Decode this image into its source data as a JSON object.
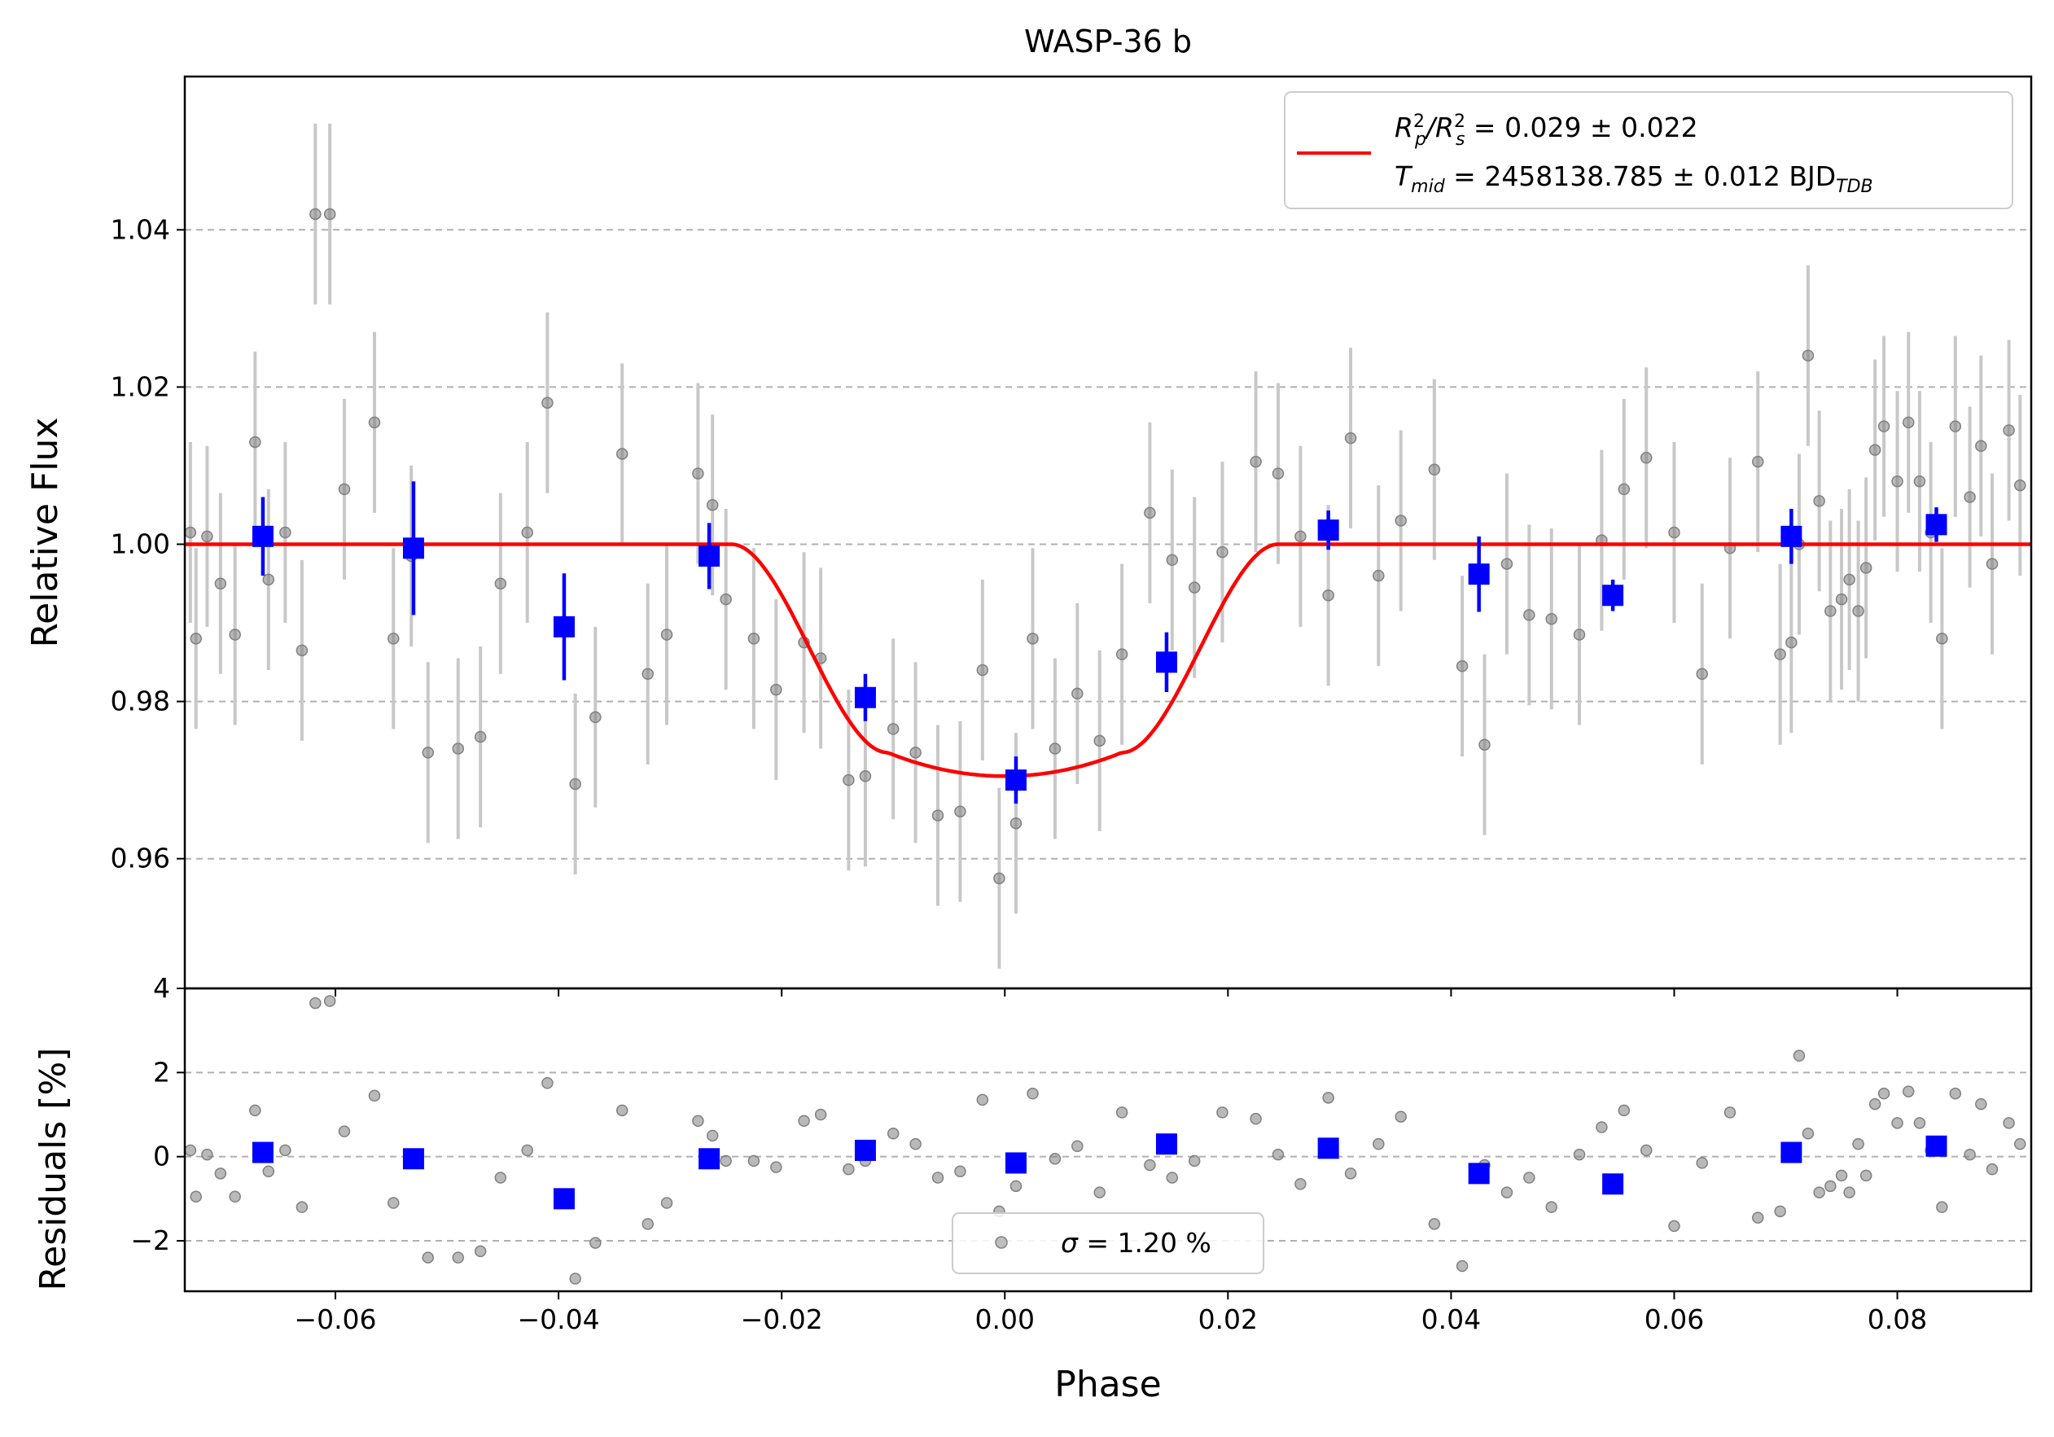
{
  "chart_data": [
    {
      "type": "scatter",
      "title": "WASP-36 b",
      "xlabel": "",
      "ylabel": "Relative Flux",
      "xlim": [
        -0.0735,
        0.092
      ],
      "ylim": [
        0.9435,
        1.0595
      ],
      "x_ticks": [
        -0.06,
        -0.04,
        -0.02,
        0.0,
        0.02,
        0.04,
        0.06,
        0.08
      ],
      "y_ticks": [
        0.96,
        0.98,
        1.0,
        1.02,
        1.04
      ],
      "y_tick_labels": [
        "0.96",
        "0.98",
        "1.00",
        "1.02",
        "1.04"
      ],
      "grid": "y-dashed",
      "legend_placement": "top-right",
      "legend": {
        "line1_prefix": "R",
        "line1_sub1": "p",
        "line1_sup1": "2",
        "line1_slash": "/R",
        "line1_sub2": "s",
        "line1_sup2": "2",
        "line1_value": " = 0.029 ± 0.022",
        "line2_prefix": "T",
        "line2_sub": "mid",
        "line2_value": " = 2458138.785 ± 0.012 BJD",
        "line2_value_sub": "TDB"
      },
      "model": {
        "color": "#ff0000",
        "depth": 0.0295,
        "t14_half": 0.0245,
        "t23_half": 0.0105,
        "x": [
          -0.0735,
          -0.0245,
          -0.0175,
          -0.0105,
          0.0,
          0.0105,
          0.0175,
          0.0245,
          0.092
        ],
        "y": [
          1.0,
          1.0,
          0.986,
          0.9735,
          0.9705,
          0.9735,
          0.986,
          1.0,
          1.0
        ]
      },
      "raw": {
        "color": "#808080",
        "x": [
          -0.073,
          -0.0725,
          -0.0715,
          -0.0703,
          -0.069,
          -0.0672,
          -0.066,
          -0.0645,
          -0.063,
          -0.0618,
          -0.0605,
          -0.0592,
          -0.0565,
          -0.0548,
          -0.0532,
          -0.0517,
          -0.049,
          -0.047,
          -0.0452,
          -0.0428,
          -0.041,
          -0.0385,
          -0.0367,
          -0.0343,
          -0.032,
          -0.0303,
          -0.0275,
          -0.0262,
          -0.025,
          -0.0225,
          -0.0205,
          -0.018,
          -0.0165,
          -0.014,
          -0.0125,
          -0.01,
          -0.008,
          -0.006,
          -0.004,
          -0.002,
          -0.0005,
          0.001,
          0.0025,
          0.0045,
          0.0065,
          0.0085,
          0.0105,
          0.013,
          0.015,
          0.017,
          0.0195,
          0.0225,
          0.0245,
          0.0265,
          0.029,
          0.031,
          0.0335,
          0.0355,
          0.0385,
          0.041,
          0.043,
          0.045,
          0.047,
          0.049,
          0.0515,
          0.0535,
          0.0555,
          0.0575,
          0.06,
          0.0625,
          0.065,
          0.0675,
          0.0695,
          0.0705,
          0.0712,
          0.072,
          0.073,
          0.074,
          0.075,
          0.0757,
          0.0765,
          0.0772,
          0.078,
          0.0788,
          0.08,
          0.081,
          0.082,
          0.083,
          0.084,
          0.0852,
          0.0865,
          0.0875,
          0.0885,
          0.09,
          0.091
        ],
        "y": [
          1.0015,
          0.988,
          1.001,
          0.995,
          0.9885,
          1.013,
          0.9955,
          1.0015,
          0.9865,
          1.042,
          1.042,
          1.007,
          1.0155,
          0.988,
          0.9985,
          0.9735,
          0.974,
          0.9755,
          0.995,
          1.0015,
          1.018,
          0.9695,
          0.978,
          1.0115,
          0.9835,
          0.9885,
          1.009,
          1.005,
          0.993,
          0.988,
          0.9815,
          0.9875,
          0.9855,
          0.97,
          0.9705,
          0.9765,
          0.9735,
          0.9655,
          0.966,
          0.984,
          0.9575,
          0.9645,
          0.988,
          0.974,
          0.981,
          0.975,
          0.986,
          1.004,
          0.998,
          0.9945,
          0.999,
          1.0105,
          1.009,
          1.001,
          0.9935,
          1.0135,
          0.996,
          1.003,
          1.0095,
          0.9845,
          0.9745,
          0.9975,
          0.991,
          0.9905,
          0.9885,
          1.0005,
          1.007,
          1.011,
          1.0015,
          0.9835,
          0.9995,
          1.0105,
          0.986,
          0.9875,
          1.0,
          1.024,
          1.0055,
          0.9915,
          0.993,
          0.9955,
          0.9915,
          0.997,
          1.012,
          1.015,
          1.008,
          1.0155,
          1.008,
          1.0015,
          0.988,
          1.015,
          1.006,
          1.0125,
          0.9975,
          1.0145,
          1.0075
        ],
        "err": 0.0115,
        "residuals": [
          0.15,
          -0.95,
          0.05,
          -0.4,
          -0.95,
          1.1,
          -0.35,
          0.15,
          -1.2,
          3.65,
          3.7,
          0.6,
          1.45,
          -1.1,
          -0.15,
          -2.4,
          -2.4,
          -2.25,
          -0.5,
          0.15,
          1.75,
          -2.9,
          -2.05,
          1.1,
          -1.6,
          -1.1,
          0.85,
          0.5,
          -0.1,
          -0.1,
          -0.25,
          0.85,
          1.0,
          -0.3,
          -0.1,
          0.55,
          0.3,
          -0.5,
          -0.35,
          1.35,
          -1.3,
          -0.7,
          1.5,
          -0.05,
          0.25,
          -0.85,
          1.05,
          -0.2,
          -0.5,
          -0.1,
          1.05,
          0.9,
          0.05,
          -0.65,
          1.4,
          -0.4,
          0.3,
          0.95,
          -1.6,
          -2.6,
          -0.2,
          -0.85,
          -0.5,
          -1.2,
          0.05,
          0.7,
          1.1,
          0.15,
          -1.65,
          -0.15,
          1.05,
          -1.45,
          -1.3,
          0.0,
          2.4,
          0.55,
          -0.85,
          -0.7,
          -0.45,
          -0.85,
          0.3,
          -0.45,
          1.25,
          1.5,
          0.8,
          1.55,
          0.8,
          0.15,
          -1.2,
          1.5,
          0.05,
          1.25,
          -0.3,
          0.8,
          0.3
        ]
      },
      "binned": {
        "color": "#0000ff",
        "x": [
          -0.0665,
          -0.053,
          -0.0395,
          -0.0265,
          -0.0125,
          0.001,
          0.0145,
          0.029,
          0.0425,
          0.0545,
          0.0705,
          0.0835
        ],
        "y": [
          1.001,
          0.9995,
          0.9895,
          0.9985,
          0.9805,
          0.97,
          0.985,
          1.0018,
          0.9962,
          0.9935,
          1.001,
          1.0025
        ],
        "err": [
          0.005,
          0.0085,
          0.0068,
          0.0042,
          0.003,
          0.003,
          0.0038,
          0.0025,
          0.0048,
          0.002,
          0.0035,
          0.0022
        ],
        "residuals": [
          0.1,
          -0.05,
          -1.0,
          -0.05,
          0.15,
          -0.15,
          0.3,
          0.2,
          -0.4,
          -0.65,
          0.1,
          0.25
        ]
      }
    },
    {
      "type": "scatter",
      "title": "",
      "xlabel": "Phase",
      "ylabel": "Residuals [%]",
      "xlim": [
        -0.0735,
        0.092
      ],
      "ylim": [
        -3.2,
        4.0
      ],
      "x_ticks": [
        -0.06,
        -0.04,
        -0.02,
        0.0,
        0.02,
        0.04,
        0.06,
        0.08
      ],
      "x_tick_labels": [
        "−0.06",
        "−0.04",
        "−0.02",
        "0.00",
        "0.02",
        "0.04",
        "0.06",
        "0.08"
      ],
      "y_ticks": [
        -2,
        0,
        2,
        4
      ],
      "y_tick_labels": [
        "−2",
        "0",
        "2",
        "4"
      ],
      "grid": "y-dashed",
      "legend_placement": "bottom-center",
      "legend": {
        "sigma_symbol": "σ",
        "sigma_text": " = 1.20 %"
      }
    }
  ]
}
